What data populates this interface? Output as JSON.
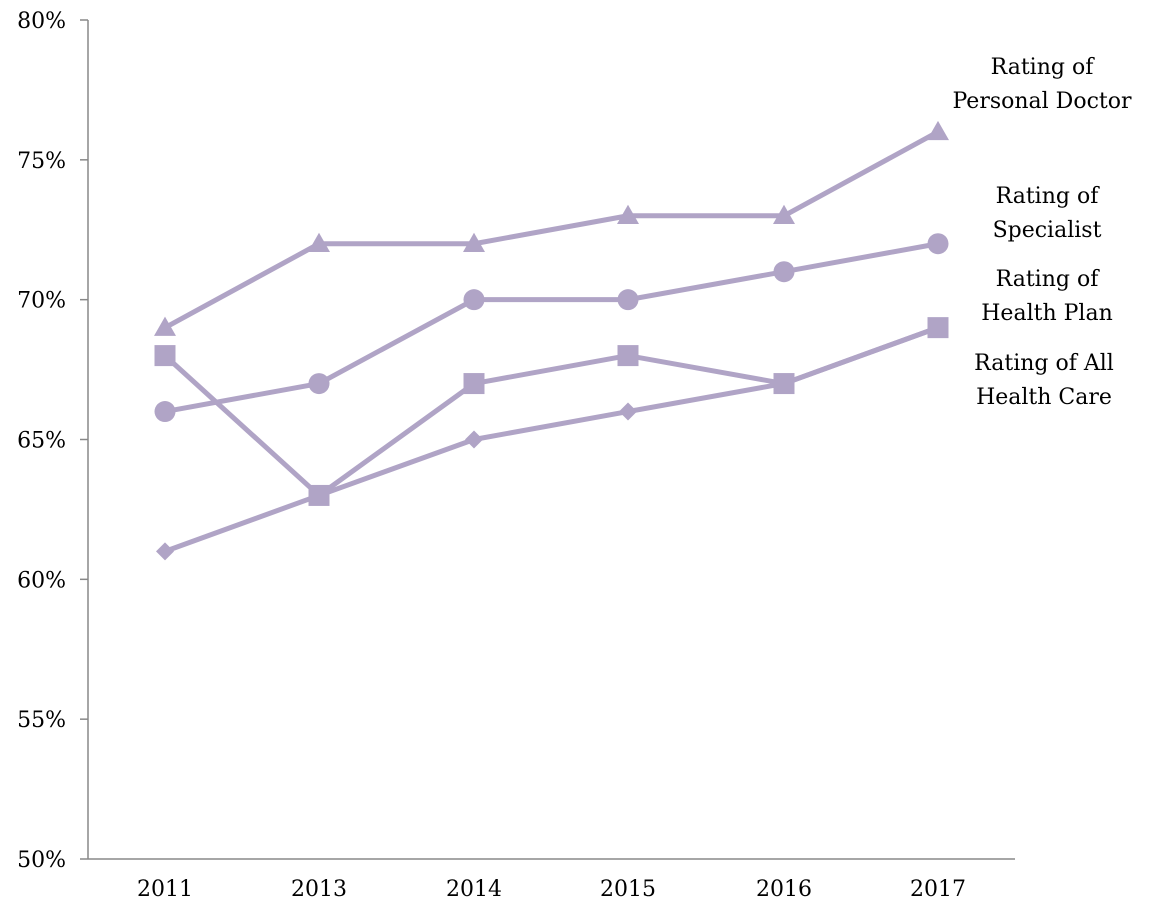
{
  "chart_data": {
    "type": "line",
    "title": "",
    "xlabel": "",
    "ylabel": "",
    "categories": [
      "2011",
      "2013",
      "2014",
      "2015",
      "2016",
      "2017"
    ],
    "ylim": [
      50,
      80
    ],
    "y_ticks": [
      {
        "value": 50,
        "label": "50%"
      },
      {
        "value": 55,
        "label": "55%"
      },
      {
        "value": 60,
        "label": "60%"
      },
      {
        "value": 65,
        "label": "65%"
      },
      {
        "value": 70,
        "label": "70%"
      },
      {
        "value": 75,
        "label": "75%"
      },
      {
        "value": 80,
        "label": "80%"
      }
    ],
    "grid": false,
    "legend": "right (direct labels)",
    "line_color": "#b0a4c6",
    "series": [
      {
        "name": "Rating of Personal Doctor",
        "label_lines": [
          "Rating of",
          "Personal Doctor"
        ],
        "marker": "triangle",
        "values": [
          69,
          72,
          72,
          73,
          73,
          76
        ]
      },
      {
        "name": "Rating of Specialist",
        "label_lines": [
          "Rating of",
          "Specialist"
        ],
        "marker": "circle",
        "values": [
          66,
          67,
          70,
          70,
          71,
          72
        ]
      },
      {
        "name": "Rating of Health Plan",
        "label_lines": [
          "Rating of",
          "Health Plan"
        ],
        "marker": "square",
        "values": [
          68,
          63,
          67,
          68,
          67,
          69
        ]
      },
      {
        "name": "Rating of All Health Care",
        "label_lines": [
          "Rating of All",
          "Health Care"
        ],
        "marker": "diamond",
        "values": [
          61,
          63,
          65,
          66,
          67,
          69
        ]
      }
    ]
  }
}
